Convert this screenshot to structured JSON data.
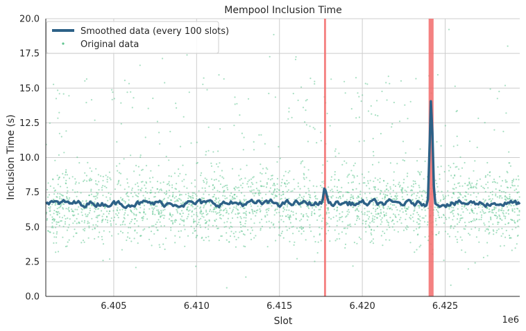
{
  "chart_data": {
    "type": "scatter",
    "title": "Mempool Inclusion Time",
    "xlabel": "Slot",
    "ylabel": "Inclusion Time (s)",
    "x_offset_label": "1e6",
    "xlim": [
      6.4009,
      6.4295
    ],
    "ylim": [
      0,
      20
    ],
    "x_ticks": [
      6.405,
      6.41,
      6.415,
      6.42,
      6.425
    ],
    "x_tick_labels": [
      "6.405",
      "6.410",
      "6.415",
      "6.420",
      "6.425"
    ],
    "y_ticks": [
      0,
      2.5,
      5,
      7.5,
      10,
      12.5,
      15,
      17.5,
      20
    ],
    "y_tick_labels": [
      "0.0",
      "2.5",
      "5.0",
      "7.5",
      "10.0",
      "12.5",
      "15.0",
      "17.5",
      "20.0"
    ],
    "grid": true,
    "legend": {
      "placement": "top-left",
      "entries": [
        "Smoothed data (every 100 slots)",
        "Original data"
      ]
    },
    "highlight_bands": [
      {
        "x": 6.41775,
        "width": 0.00012
      },
      {
        "x": 6.42415,
        "width": 0.0003
      }
    ],
    "smoothed_series": {
      "name": "Smoothed data (every 100 slots)",
      "baseline": 6.7,
      "spikes": [
        {
          "x": 6.41775,
          "y": 7.8
        },
        {
          "x": 6.42415,
          "y": 14.3
        }
      ]
    },
    "scatter_series": {
      "name": "Original data",
      "center": 6.5,
      "spread": 1.3
    },
    "colors": {
      "smoothed": "#2d6187",
      "scatter": "#5ec48f",
      "band": "#f26b6b",
      "grid": "#cccccc",
      "axis": "#262626"
    }
  }
}
